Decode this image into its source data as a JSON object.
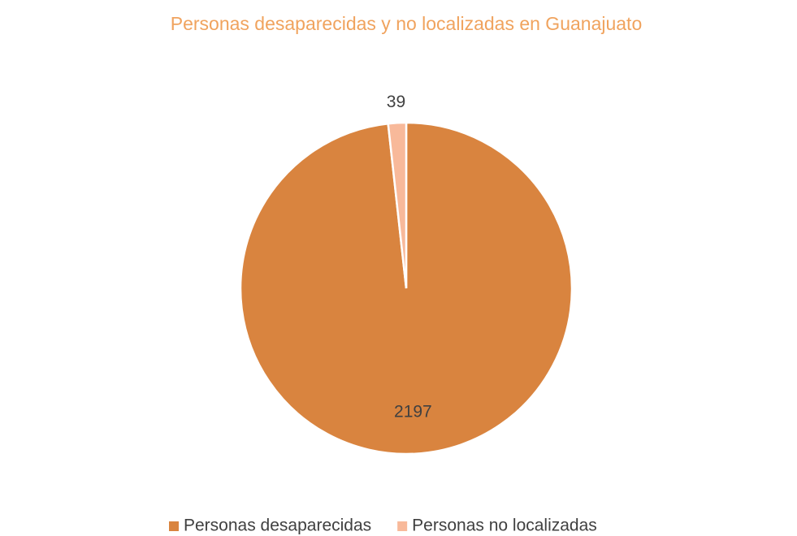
{
  "chart_data": {
    "type": "pie",
    "title": "Personas desaparecidas y no localizadas en Guanajuato",
    "categories": [
      "Personas desaparecidas",
      "Personas no localizadas"
    ],
    "values": [
      2197,
      39
    ],
    "colors": [
      "#D9843F",
      "#F8B99A"
    ],
    "legend": "bottom"
  }
}
